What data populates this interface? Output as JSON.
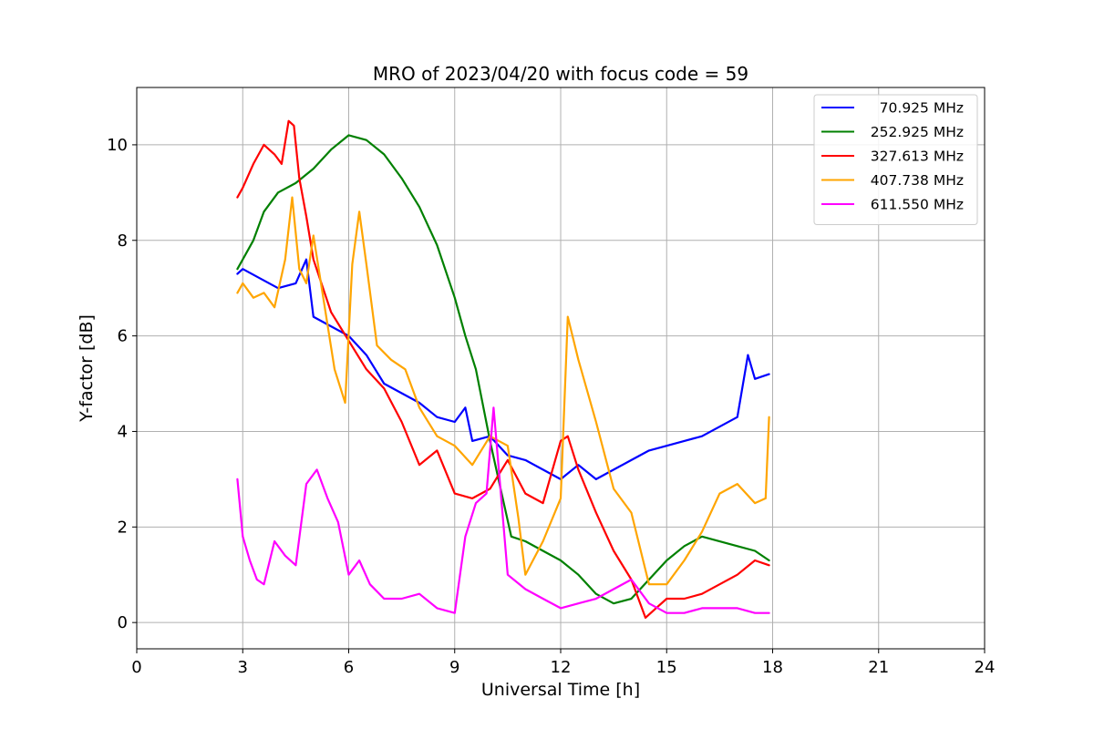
{
  "chart_data": {
    "type": "line",
    "title": "MRO of 2023/04/20 with focus code = 59",
    "xlabel": "Universal Time [h]",
    "ylabel": "Y-factor [dB]",
    "xlim": [
      0,
      24
    ],
    "ylim": [
      -0.55,
      11.2
    ],
    "xticks": [
      0,
      3,
      6,
      9,
      12,
      15,
      18,
      21,
      24
    ],
    "yticks": [
      0,
      2,
      4,
      6,
      8,
      10
    ],
    "grid": true,
    "legend_position": "top-right",
    "series": [
      {
        "name": "70.925 MHz",
        "color": "#0000ff",
        "x": [
          2.85,
          3.0,
          3.5,
          4.0,
          4.5,
          4.8,
          5.0,
          5.5,
          6.0,
          6.5,
          7.0,
          7.5,
          8.0,
          8.5,
          9.0,
          9.3,
          9.5,
          10.0,
          10.5,
          11.0,
          11.5,
          12.0,
          12.5,
          13.0,
          13.5,
          14.0,
          14.5,
          15.0,
          15.5,
          16.0,
          16.5,
          17.0,
          17.3,
          17.5,
          17.9
        ],
        "y": [
          7.3,
          7.4,
          7.2,
          7.0,
          7.1,
          7.6,
          6.4,
          6.2,
          6.0,
          5.6,
          5.0,
          4.8,
          4.6,
          4.3,
          4.2,
          4.5,
          3.8,
          3.9,
          3.5,
          3.4,
          3.2,
          3.0,
          3.3,
          3.0,
          3.2,
          3.4,
          3.6,
          3.7,
          3.8,
          3.9,
          4.1,
          4.3,
          5.6,
          5.1,
          5.2
        ]
      },
      {
        "name": "252.925 MHz",
        "color": "#008000",
        "x": [
          2.85,
          3.0,
          3.3,
          3.6,
          4.0,
          4.5,
          5.0,
          5.5,
          6.0,
          6.5,
          7.0,
          7.5,
          8.0,
          8.5,
          9.0,
          9.3,
          9.6,
          10.0,
          10.3,
          10.6,
          11.0,
          11.5,
          12.0,
          12.5,
          13.0,
          13.5,
          14.0,
          14.5,
          15.0,
          15.5,
          16.0,
          16.5,
          17.0,
          17.5,
          17.9
        ],
        "y": [
          7.4,
          7.6,
          8.0,
          8.6,
          9.0,
          9.2,
          9.5,
          9.9,
          10.2,
          10.1,
          9.8,
          9.3,
          8.7,
          7.9,
          6.8,
          6.0,
          5.3,
          3.8,
          2.8,
          1.8,
          1.7,
          1.5,
          1.3,
          1.0,
          0.6,
          0.4,
          0.5,
          0.9,
          1.3,
          1.6,
          1.8,
          1.7,
          1.6,
          1.5,
          1.3
        ]
      },
      {
        "name": "327.613 MHz",
        "color": "#ff0000",
        "x": [
          2.85,
          3.0,
          3.3,
          3.6,
          3.9,
          4.1,
          4.3,
          4.45,
          4.6,
          4.8,
          5.0,
          5.5,
          6.0,
          6.5,
          7.0,
          7.5,
          8.0,
          8.5,
          9.0,
          9.5,
          10.0,
          10.5,
          11.0,
          11.5,
          12.0,
          12.2,
          12.5,
          13.0,
          13.5,
          14.0,
          14.4,
          14.7,
          15.0,
          15.5,
          16.0,
          16.5,
          17.0,
          17.5,
          17.9
        ],
        "y": [
          8.9,
          9.1,
          9.6,
          10.0,
          9.8,
          9.6,
          10.5,
          10.4,
          9.3,
          8.5,
          7.6,
          6.5,
          5.9,
          5.3,
          4.9,
          4.2,
          3.3,
          3.6,
          2.7,
          2.6,
          2.8,
          3.4,
          2.7,
          2.5,
          3.8,
          3.9,
          3.2,
          2.3,
          1.5,
          0.9,
          0.1,
          0.3,
          0.5,
          0.5,
          0.6,
          0.8,
          1.0,
          1.3,
          1.2
        ]
      },
      {
        "name": "407.738 MHz",
        "color": "#ffa500",
        "x": [
          2.85,
          3.0,
          3.3,
          3.6,
          3.9,
          4.2,
          4.4,
          4.6,
          4.8,
          5.0,
          5.3,
          5.6,
          5.9,
          6.1,
          6.3,
          6.5,
          6.8,
          7.2,
          7.6,
          8.0,
          8.5,
          9.0,
          9.5,
          10.0,
          10.5,
          10.8,
          11.0,
          11.5,
          12.0,
          12.2,
          12.5,
          13.0,
          13.5,
          14.0,
          14.5,
          15.0,
          15.5,
          16.0,
          16.5,
          17.0,
          17.5,
          17.8,
          17.9
        ],
        "y": [
          6.9,
          7.1,
          6.8,
          6.9,
          6.6,
          7.6,
          8.9,
          7.4,
          7.1,
          8.1,
          6.7,
          5.3,
          4.6,
          7.5,
          8.6,
          7.5,
          5.8,
          5.5,
          5.3,
          4.5,
          3.9,
          3.7,
          3.3,
          3.9,
          3.7,
          2.2,
          1.0,
          1.7,
          2.6,
          6.4,
          5.5,
          4.2,
          2.8,
          2.3,
          0.8,
          0.8,
          1.3,
          1.9,
          2.7,
          2.9,
          2.5,
          2.6,
          4.3
        ]
      },
      {
        "name": "611.550 MHz",
        "color": "#ff00ff",
        "x": [
          2.85,
          3.0,
          3.2,
          3.4,
          3.6,
          3.9,
          4.2,
          4.5,
          4.8,
          5.1,
          5.4,
          5.7,
          6.0,
          6.3,
          6.6,
          7.0,
          7.5,
          8.0,
          8.5,
          9.0,
          9.3,
          9.6,
          9.9,
          10.1,
          10.5,
          11.0,
          11.5,
          12.0,
          12.5,
          13.0,
          13.5,
          14.0,
          14.5,
          15.0,
          15.5,
          16.0,
          16.5,
          17.0,
          17.5,
          17.9
        ],
        "y": [
          3.0,
          1.8,
          1.3,
          0.9,
          0.8,
          1.7,
          1.4,
          1.2,
          2.9,
          3.2,
          2.6,
          2.1,
          1.0,
          1.3,
          0.8,
          0.5,
          0.5,
          0.6,
          0.3,
          0.2,
          1.8,
          2.5,
          2.7,
          4.5,
          1.0,
          0.7,
          0.5,
          0.3,
          0.4,
          0.5,
          0.7,
          0.9,
          0.4,
          0.2,
          0.2,
          0.3,
          0.3,
          0.3,
          0.2,
          0.2
        ]
      }
    ]
  }
}
